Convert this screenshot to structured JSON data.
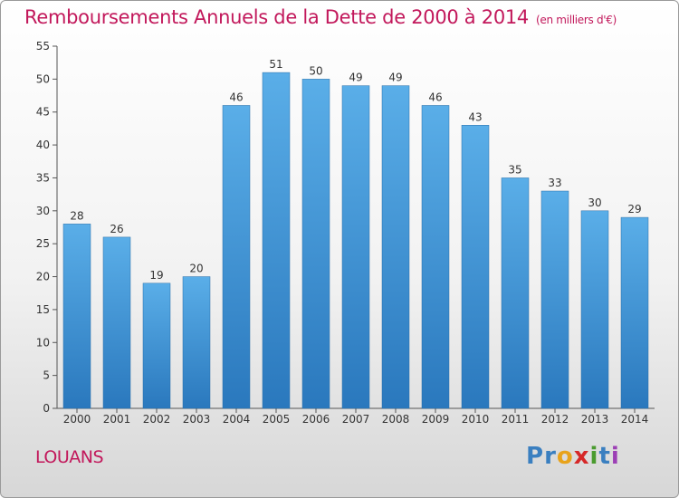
{
  "title": "Remboursements Annuels de la Dette de 2000 à 2014",
  "unit": "(en milliers d'€)",
  "place": "LOUANS",
  "logo": {
    "letters": [
      "P",
      "r",
      "o",
      "x",
      "i",
      "t",
      "i"
    ],
    "colors": [
      "#3a7fc0",
      "#3a7fc0",
      "#e8a31b",
      "#d62828",
      "#4a9b2f",
      "#3a7fc0",
      "#9c3fb5"
    ]
  },
  "colors": {
    "title": "#c2185b",
    "bar_light": "#5aaee8",
    "bar_dark": "#2a78bd"
  },
  "chart_data": {
    "type": "bar",
    "title": "Remboursements Annuels de la Dette de 2000 à 2014",
    "categories": [
      "2000",
      "2001",
      "2002",
      "2003",
      "2004",
      "2005",
      "2006",
      "2007",
      "2008",
      "2009",
      "2010",
      "2011",
      "2012",
      "2013",
      "2014"
    ],
    "values": [
      28,
      26,
      19,
      20,
      46,
      51,
      50,
      49,
      49,
      46,
      43,
      35,
      33,
      30,
      29
    ],
    "ylim": [
      0,
      55
    ],
    "yticks": [
      0,
      5,
      10,
      15,
      20,
      25,
      30,
      35,
      40,
      45,
      50,
      55
    ],
    "grid": false,
    "data_labels": true
  }
}
